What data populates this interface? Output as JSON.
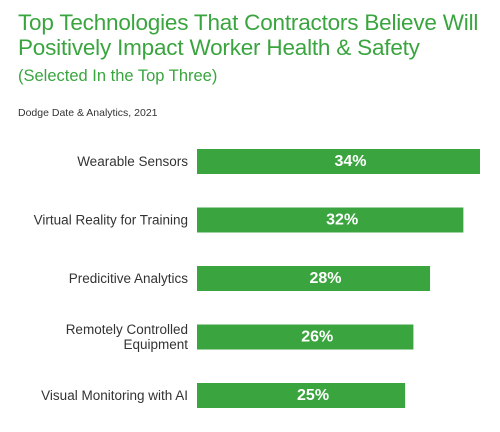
{
  "title": "Top Technologies That Contractors Believe Will Positively Impact Worker Health & Safety",
  "subtitle": "(Selected In the Top Three)",
  "source": "Dodge Date & Analytics, 2021",
  "chart_data": {
    "type": "bar",
    "orientation": "horizontal",
    "title": "Top Technologies That Contractors Believe Will Positively Impact Worker Health & Safety",
    "subtitle": "(Selected In the Top Three)",
    "categories": [
      "Wearable Sensors",
      "Virtual Reality for Training",
      "Predicitive Analytics",
      "Remotely Controlled Equipment",
      "Visual Monitoring with AI"
    ],
    "category_lines": [
      [
        "Wearable Sensors"
      ],
      [
        "Virtual Reality for Training"
      ],
      [
        "Predicitive Analytics"
      ],
      [
        "Remotely Controlled",
        "Equipment"
      ],
      [
        "Visual Monitoring with AI"
      ]
    ],
    "values": [
      34,
      32,
      28,
      26,
      25
    ],
    "value_labels": [
      "34%",
      "32%",
      "28%",
      "26%",
      "25%"
    ],
    "xlim": [
      0,
      34
    ],
    "grid": false,
    "legend": "none",
    "colors": {
      "bar": "#3aa53f",
      "value_label": "#ffffff",
      "category_label": "#333333",
      "title": "#3aa53f"
    }
  }
}
